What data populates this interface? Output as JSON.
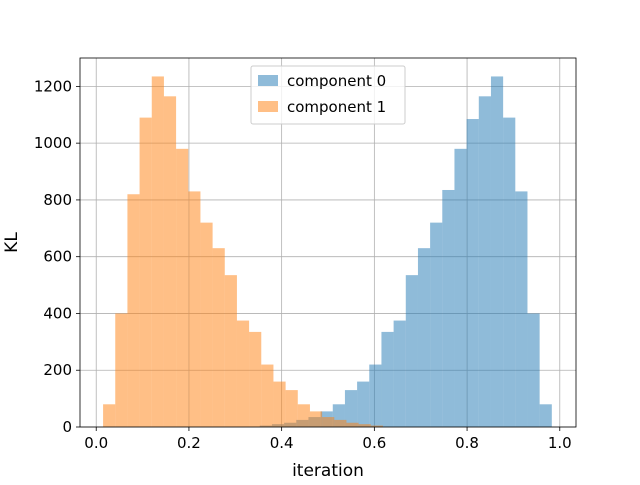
{
  "chart_data": {
    "type": "bar",
    "title": "",
    "xlabel": "iteration",
    "ylabel": "KL",
    "xlim": [
      -0.035,
      1.035
    ],
    "ylim": [
      0,
      1300
    ],
    "xticks": [
      0.0,
      0.2,
      0.4,
      0.6,
      0.8,
      1.0
    ],
    "xtick_labels": [
      "0.0",
      "0.2",
      "0.4",
      "0.6",
      "0.8",
      "1.0"
    ],
    "yticks": [
      0,
      200,
      400,
      600,
      800,
      1000,
      1200
    ],
    "ytick_labels": [
      "0",
      "200",
      "400",
      "600",
      "800",
      "1000",
      "1200"
    ],
    "grid": true,
    "legend_position": "top-center",
    "bin_width": 0.02625,
    "series": [
      {
        "name": "component 0",
        "color": "#1f77b4",
        "alpha": 0.5,
        "bin_start": 0.3528,
        "counts": [
          5,
          10,
          15,
          25,
          35,
          55,
          80,
          130,
          160,
          220,
          335,
          375,
          535,
          630,
          720,
          835,
          980,
          1085,
          1165,
          1235,
          1090,
          830,
          400,
          80
        ]
      },
      {
        "name": "component 1",
        "color": "#ff7f0e",
        "alpha": 0.5,
        "bin_start": 0.0148,
        "counts": [
          80,
          400,
          820,
          1090,
          1235,
          1165,
          980,
          830,
          720,
          630,
          535,
          375,
          335,
          220,
          160,
          130,
          80,
          55,
          35,
          25,
          15,
          10,
          5
        ]
      }
    ]
  }
}
